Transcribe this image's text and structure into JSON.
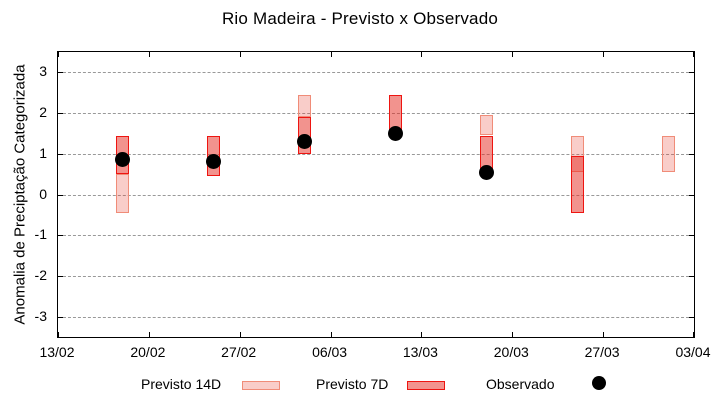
{
  "title": "Rio Madeira - Previsto x Observado",
  "y_axis": {
    "label": "Anomalia de Preciptação Categorizada",
    "ticks": [
      3,
      2,
      1,
      0,
      -1,
      -2,
      -3
    ]
  },
  "x_axis": {
    "tick_labels": [
      "13/02",
      "20/02",
      "27/02",
      "06/03",
      "13/03",
      "20/03",
      "27/03",
      "03/04"
    ],
    "span_days": 49
  },
  "legend": {
    "previsto14_label": "Previsto 14D",
    "previsto7_label": "Previsto 7D",
    "observado_label": "Observado"
  },
  "colors": {
    "forecast_7d_border": "#ee1511",
    "forecast_14d_border": "#f08c78",
    "forecast_fill_base": "rgba(232,62,46,0.26)",
    "forecast_7d_fill": "rgba(230,40,30,0.50)",
    "observed": "#000000",
    "grid": "#999999"
  },
  "chart_data": {
    "type": "bar",
    "title": "Rio Madeira - Previsto x Observado",
    "xlabel": "",
    "ylabel": "Anomalia de Preciptação Categorizada",
    "ylim": [
      -3.5,
      3.5
    ],
    "yticks": [
      3,
      2,
      1,
      0,
      -1,
      -2,
      -3
    ],
    "x_tick_labels": [
      "13/02",
      "20/02",
      "27/02",
      "06/03",
      "13/03",
      "20/03",
      "27/03",
      "03/04"
    ],
    "grid": "horizontal dashed at integer y values",
    "legend_position": "bottom outside",
    "series_names": [
      "Previsto 14D",
      "Previsto 7D",
      "Observado"
    ],
    "bars": [
      {
        "date": "18/02",
        "day": 5,
        "previsto14": [
          -0.45,
          0.5
        ],
        "previsto7": [
          0.5,
          1.45
        ],
        "observado": 0.85
      },
      {
        "date": "25/02",
        "day": 12,
        "previsto14": null,
        "previsto7": [
          0.45,
          1.45
        ],
        "observado": 0.8
      },
      {
        "date": "04/03",
        "day": 19,
        "previsto14": [
          1.9,
          2.45
        ],
        "previsto7": [
          1.0,
          1.9
        ],
        "observado": 1.3
      },
      {
        "date": "11/03",
        "day": 26,
        "previsto14": null,
        "previsto7": [
          1.5,
          2.45
        ],
        "observado": 1.5
      },
      {
        "date": "18/03",
        "day": 33,
        "previsto14": [
          1.45,
          1.95
        ],
        "previsto7": [
          0.45,
          1.45
        ],
        "observado": 0.55
      },
      {
        "date": "25/03",
        "day": 40,
        "previsto14": [
          0.55,
          1.45
        ],
        "previsto7": [
          -0.45,
          0.95
        ],
        "observado": null
      },
      {
        "date": "01/04",
        "day": 47,
        "previsto14": [
          0.55,
          1.45
        ],
        "previsto7": null,
        "observado": null
      }
    ]
  }
}
